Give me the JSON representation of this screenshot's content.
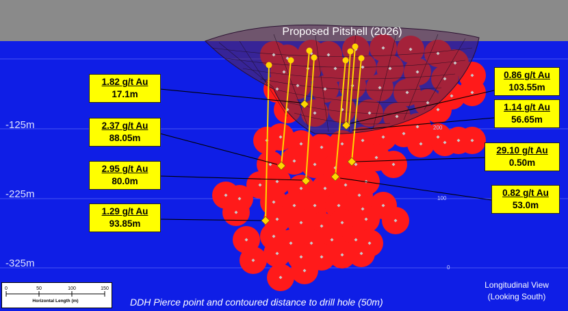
{
  "pit_title": "Proposed Pitshell (2026)",
  "depth_labels": [
    "-125m",
    "-225m",
    "-325m"
  ],
  "gridline_labels": [
    "200",
    "100",
    "0"
  ],
  "callouts": [
    {
      "grade": "1.82 g/t Au",
      "length": "17.1m"
    },
    {
      "grade": "2.37 g/t Au",
      "length": "88.05m"
    },
    {
      "grade": "2.95 g/t Au",
      "length": "80.0m"
    },
    {
      "grade": "1.29 g/t Au",
      "length": "93.85m"
    },
    {
      "grade": "0.86 g/t Au",
      "length": "103.55m"
    },
    {
      "grade": "1.14 g/t Au",
      "length": "56.65m"
    },
    {
      "grade": "29.10 g/t Au",
      "length": "0.50m"
    },
    {
      "grade": "0.82 g/t Au",
      "length": "53.0m"
    }
  ],
  "scale_bar": {
    "ticks": [
      "0",
      "50",
      "100",
      "150"
    ],
    "title": "Horizontal Length (m)"
  },
  "caption": "DDH Pierce point and contoured distance to drill hole (50m)",
  "view": {
    "line1": "Longitudinal View",
    "line2": "(Looking South)"
  },
  "colors": {
    "background": "#0f1ee6",
    "surface": "#8a8a8a",
    "contour": "#ff1a1a",
    "drillhole": "#ffd700",
    "pitshell": "#5a2a55",
    "callout": "#ffff00"
  }
}
